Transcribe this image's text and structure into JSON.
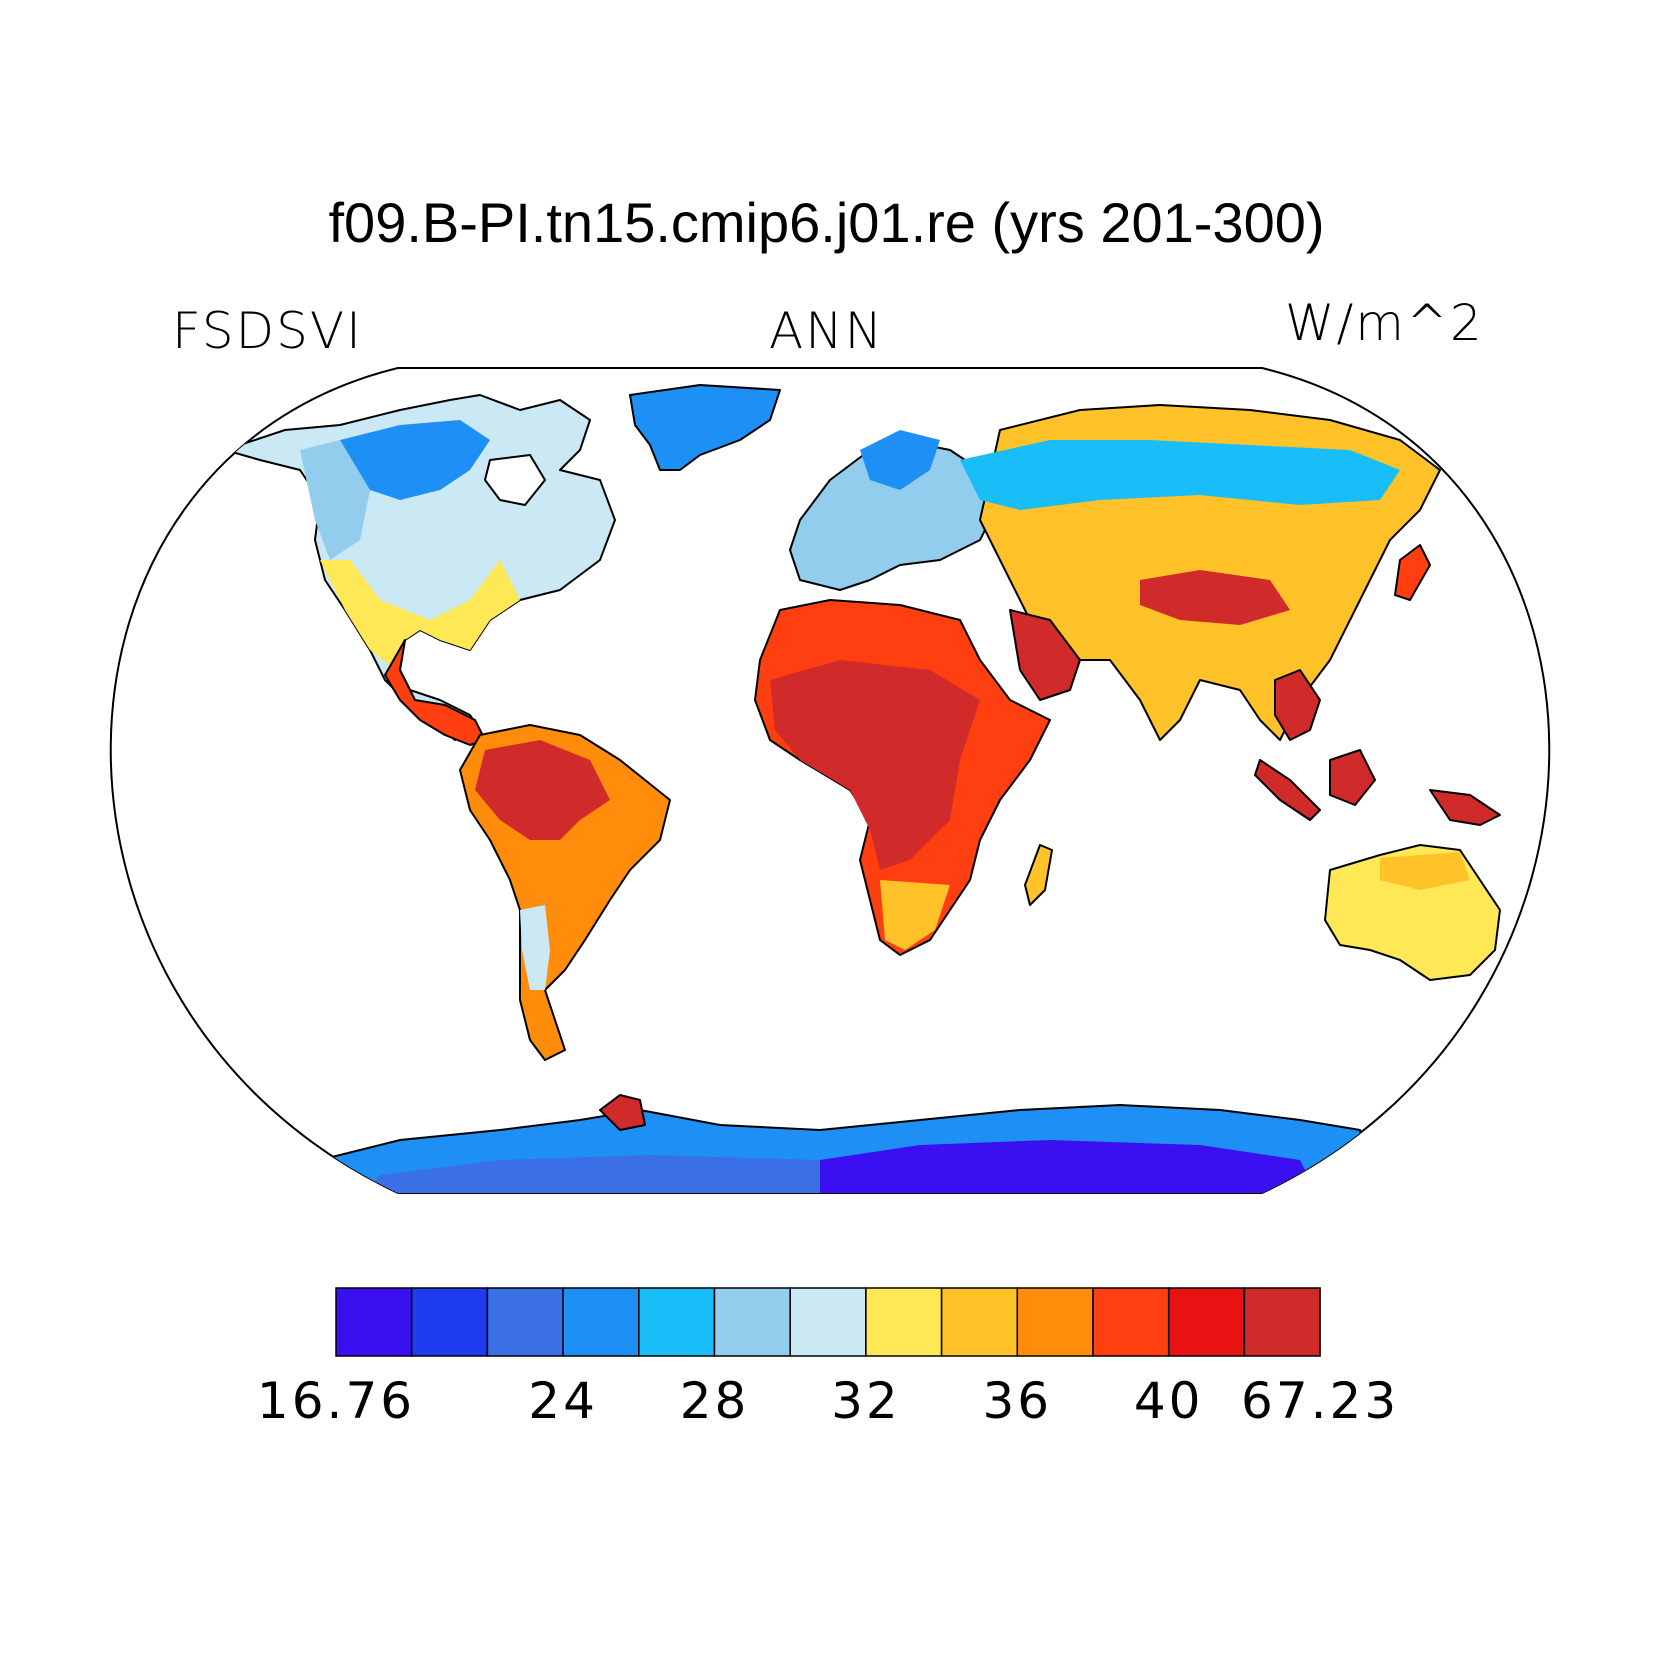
{
  "title": "f09.B-PI.tn15.cmip6.j01.re (yrs 201-300)",
  "subtitle_left": "FSDSVI",
  "subtitle_center": "ANN",
  "subtitle_right": "W/m^2",
  "colorbar": {
    "colors": [
      "#3a10f0",
      "#1f3cf0",
      "#3a6fe6",
      "#1e8ff5",
      "#19bdf8",
      "#93cdee",
      "#cbe8f5",
      "#ffe856",
      "#ffc228",
      "#ff8c0a",
      "#ff3f10",
      "#e81212",
      "#d12a2a"
    ],
    "tick_labels": [
      {
        "boundary": 0,
        "label": "16.76"
      },
      {
        "boundary": 3,
        "label": "24"
      },
      {
        "boundary": 5,
        "label": "28"
      },
      {
        "boundary": 7,
        "label": "32"
      },
      {
        "boundary": 9,
        "label": "36"
      },
      {
        "boundary": 11,
        "label": "40"
      },
      {
        "boundary": 13,
        "label": "67.23"
      }
    ]
  }
}
